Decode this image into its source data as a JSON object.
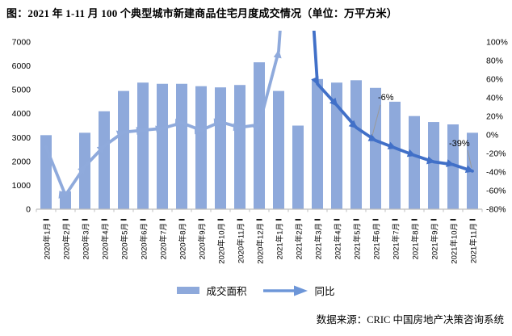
{
  "title": "图：2021 年 1-11 月 100 个典型城市新建商品住宅月度成交情况（单位：万平方米）",
  "footer": {
    "source": "数据来源：CRIC 中国房地产决策咨询系统"
  },
  "legend": {
    "bar_label": "成交面积",
    "line_label": "同比"
  },
  "colors": {
    "bar": "#8EA9DB",
    "line_2020": "#8FAADC",
    "line_2021": "#4170C8",
    "legend_arrow": "#6D96D8",
    "axis": "#BFBFBF",
    "tick_dash": "#1a1a1a",
    "leader": "#999999",
    "text": "#000000",
    "background": "#FFFFFF"
  },
  "chart_data": {
    "type": "bar",
    "combo": "bar+line",
    "title": "2021年1-11月100个典型城市新建商品住宅月度成交情况",
    "unit": "万平方米",
    "categories": [
      "2020年1月",
      "2020年2月",
      "2020年3月",
      "2020年4月",
      "2020年5月",
      "2020年6月",
      "2020年7月",
      "2020年8月",
      "2020年9月",
      "2020年10月",
      "2020年11月",
      "2020年12月",
      "2021年1月",
      "2021年2月",
      "2021年3月",
      "2021年4月",
      "2021年5月",
      "2021年6月",
      "2021年7月",
      "2021年8月",
      "2021年9月",
      "2021年10月",
      "2021年11月"
    ],
    "series": [
      {
        "name": "成交面积",
        "type": "bar",
        "axis": "left",
        "values": [
          3100,
          750,
          3200,
          4100,
          4950,
          5300,
          5250,
          5250,
          5150,
          5100,
          5200,
          6150,
          4950,
          3500,
          5450,
          5300,
          5400,
          5080,
          4500,
          3900,
          3650,
          3550,
          3200
        ]
      },
      {
        "name": "同比",
        "type": "line",
        "axis": "right",
        "unit": "%",
        "values": [
          -13,
          -65,
          -34,
          -12,
          3,
          5,
          7,
          13,
          5,
          14,
          8,
          11,
          90,
          380,
          55,
          32,
          8,
          -6,
          -14,
          -22,
          -29,
          -32,
          -39
        ],
        "split_index": 13,
        "offscale_note": "2021年2月同比远超右轴上限100%，曲线冲出图表顶部"
      }
    ],
    "ylim": [
      0,
      7000
    ],
    "y_ticks": [
      0,
      1000,
      2000,
      3000,
      4000,
      5000,
      6000,
      7000
    ],
    "y2lim": [
      -80,
      100
    ],
    "y2_ticks": [
      100,
      80,
      60,
      40,
      20,
      0,
      -20,
      -40,
      -60,
      -80
    ],
    "grid": false,
    "legend_position": "bottom",
    "annotations": [
      {
        "text": "-6%",
        "category": "2021年6月",
        "value": -6
      },
      {
        "text": "-39%",
        "category": "2021年11月",
        "value": -39
      }
    ]
  }
}
